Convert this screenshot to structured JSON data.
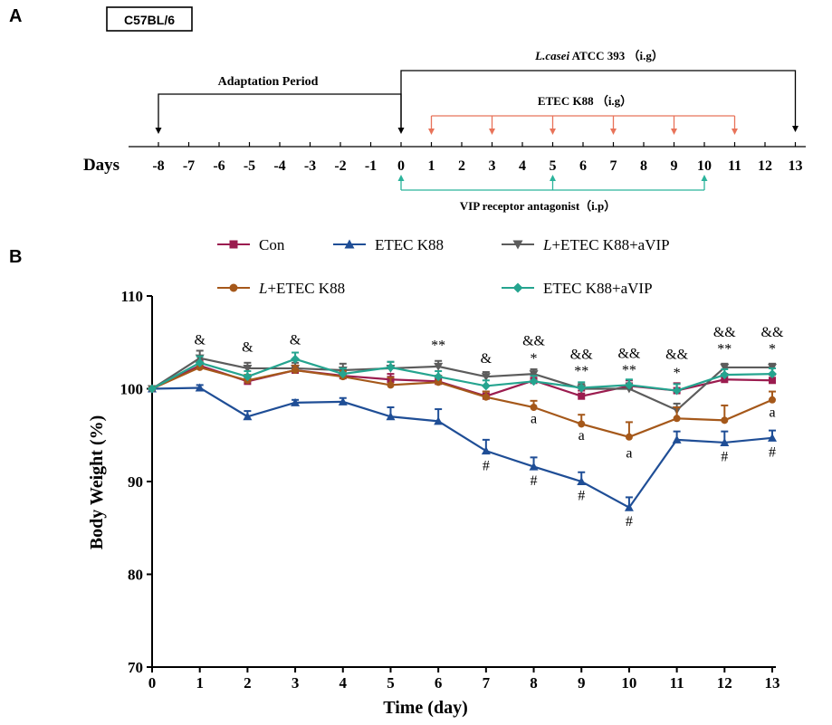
{
  "panel_a": {
    "label": "A",
    "strain": "C57BL/6",
    "days_label": "Days",
    "days": [
      -8,
      -7,
      -6,
      -5,
      -4,
      -3,
      -2,
      -1,
      0,
      1,
      2,
      3,
      4,
      5,
      6,
      7,
      8,
      9,
      10,
      11,
      12,
      13
    ],
    "adaptation": {
      "label": "Adaptation Period",
      "start_day": -8,
      "end_day": 0
    },
    "lcasei": {
      "label_italic": "L.casei",
      "label_rest": " ATCC 393 （i.g）",
      "start_day": 0,
      "end_day": 13
    },
    "etec": {
      "label": "ETEC K88 （i.g）",
      "days": [
        1,
        3,
        5,
        7,
        9,
        11
      ],
      "color": "#e8735a"
    },
    "vip": {
      "label": "VIP receptor antagonist（i.p）",
      "days": [
        0,
        5,
        10
      ],
      "color": "#2bb39b"
    }
  },
  "panel_b": {
    "label": "B",
    "legend": [
      {
        "name": "Con",
        "italic_prefix": "",
        "color": "#9b1c4f",
        "marker": "square"
      },
      {
        "name": "ETEC K88",
        "italic_prefix": "",
        "color": "#1f4e96",
        "marker": "triangle-up"
      },
      {
        "name": "+ETEC K88+aVIP",
        "italic_prefix": "L",
        "color": "#5c5c5c",
        "marker": "triangle-down"
      },
      {
        "name": "+ETEC K88",
        "italic_prefix": "L",
        "color": "#a5581a",
        "marker": "circle"
      },
      {
        "name": "ETEC K88+aVIP",
        "italic_prefix": "",
        "color": "#25a48f",
        "marker": "diamond"
      }
    ]
  },
  "chart_data": {
    "type": "line",
    "title": "",
    "xlabel": "Time (day)",
    "ylabel": "Body Weight (%)",
    "x": [
      0,
      1,
      2,
      3,
      4,
      5,
      6,
      7,
      8,
      9,
      10,
      11,
      12,
      13
    ],
    "xlim": [
      0,
      13
    ],
    "ylim": [
      70,
      110
    ],
    "yticks": [
      70,
      80,
      90,
      100,
      110
    ],
    "series": [
      {
        "name": "Con",
        "color": "#9b1c4f",
        "marker": "square",
        "values": [
          100,
          102.5,
          100.8,
          102.0,
          101.4,
          101.0,
          100.8,
          99.2,
          100.9,
          99.2,
          100.3,
          99.8,
          101.0,
          100.9
        ],
        "errors": [
          0,
          0.6,
          0.6,
          0.5,
          0.5,
          0.6,
          0.6,
          0.5,
          0.6,
          0.6,
          0.6,
          0.8,
          0.6,
          0.6
        ]
      },
      {
        "name": "ETEC K88",
        "color": "#1f4e96",
        "marker": "triangle-up",
        "values": [
          100,
          100.1,
          97.0,
          98.5,
          98.6,
          97.0,
          96.5,
          93.3,
          91.6,
          90.0,
          87.2,
          94.5,
          94.2,
          94.7
        ],
        "errors": [
          0,
          0.3,
          0.6,
          0.3,
          0.4,
          1.0,
          1.3,
          1.2,
          1.0,
          1.0,
          1.1,
          0.9,
          1.2,
          0.8
        ]
      },
      {
        "name": "L+ETEC K88+aVIP",
        "color": "#5c5c5c",
        "marker": "triangle-down",
        "values": [
          100,
          103.3,
          102.2,
          102.2,
          102.0,
          102.2,
          102.4,
          101.3,
          101.6,
          100.0,
          100.0,
          97.7,
          102.3,
          102.3
        ],
        "errors": [
          0,
          0.8,
          0.6,
          0.6,
          0.7,
          0.7,
          0.6,
          0.5,
          0.5,
          0.5,
          0.5,
          0.7,
          0.4,
          0.4
        ]
      },
      {
        "name": "L+ETEC K88",
        "color": "#a5581a",
        "marker": "circle",
        "values": [
          100,
          102.3,
          100.9,
          102.0,
          101.3,
          100.4,
          100.7,
          99.1,
          98.0,
          96.2,
          94.8,
          96.8,
          96.6,
          98.8
        ],
        "errors": [
          0,
          0.6,
          0.6,
          0.5,
          0.6,
          0.8,
          0.7,
          0.6,
          0.7,
          1.0,
          1.6,
          1.2,
          1.6,
          0.9
        ]
      },
      {
        "name": "ETEC K88+aVIP",
        "color": "#25a48f",
        "marker": "diamond",
        "values": [
          100,
          102.8,
          101.3,
          103.2,
          101.6,
          102.3,
          101.3,
          100.3,
          100.8,
          100.1,
          100.4,
          99.8,
          101.5,
          101.6
        ],
        "errors": [
          0,
          0.7,
          0.6,
          0.7,
          0.6,
          0.6,
          0.6,
          0.6,
          0.6,
          0.6,
          0.6,
          0.7,
          0.6,
          0.6
        ]
      }
    ],
    "annotations": [
      {
        "text": "&",
        "x": 1,
        "y": 104.8
      },
      {
        "text": "&",
        "x": 2,
        "y": 104.0
      },
      {
        "text": "&",
        "x": 3,
        "y": 104.8
      },
      {
        "text": "**",
        "x": 6,
        "y": 104.2
      },
      {
        "text": "&",
        "x": 7,
        "y": 102.8
      },
      {
        "text": "&&",
        "x": 8,
        "y": 104.7
      },
      {
        "text": "*",
        "x": 8,
        "y": 102.8
      },
      {
        "text": "&&",
        "x": 9,
        "y": 103.2
      },
      {
        "text": "**",
        "x": 9,
        "y": 101.4
      },
      {
        "text": "&&",
        "x": 10,
        "y": 103.3
      },
      {
        "text": "**",
        "x": 10,
        "y": 101.5
      },
      {
        "text": "&&",
        "x": 11,
        "y": 103.2
      },
      {
        "text": "*",
        "x": 11,
        "y": 101.2
      },
      {
        "text": "&&",
        "x": 12,
        "y": 105.6
      },
      {
        "text": "**",
        "x": 12,
        "y": 103.8
      },
      {
        "text": "&&",
        "x": 13,
        "y": 105.6
      },
      {
        "text": "*",
        "x": 13,
        "y": 103.8
      },
      {
        "text": "a",
        "x": 8,
        "y": 96.3
      },
      {
        "text": "a",
        "x": 9,
        "y": 94.5
      },
      {
        "text": "a",
        "x": 10,
        "y": 92.6
      },
      {
        "text": "a",
        "x": 13,
        "y": 97.0
      },
      {
        "text": "#",
        "x": 7,
        "y": 91.2
      },
      {
        "text": "#",
        "x": 8,
        "y": 89.6
      },
      {
        "text": "#",
        "x": 9,
        "y": 88.0
      },
      {
        "text": "#",
        "x": 10,
        "y": 85.2
      },
      {
        "text": "#",
        "x": 12,
        "y": 92.2
      },
      {
        "text": "#",
        "x": 13,
        "y": 92.7
      }
    ]
  }
}
